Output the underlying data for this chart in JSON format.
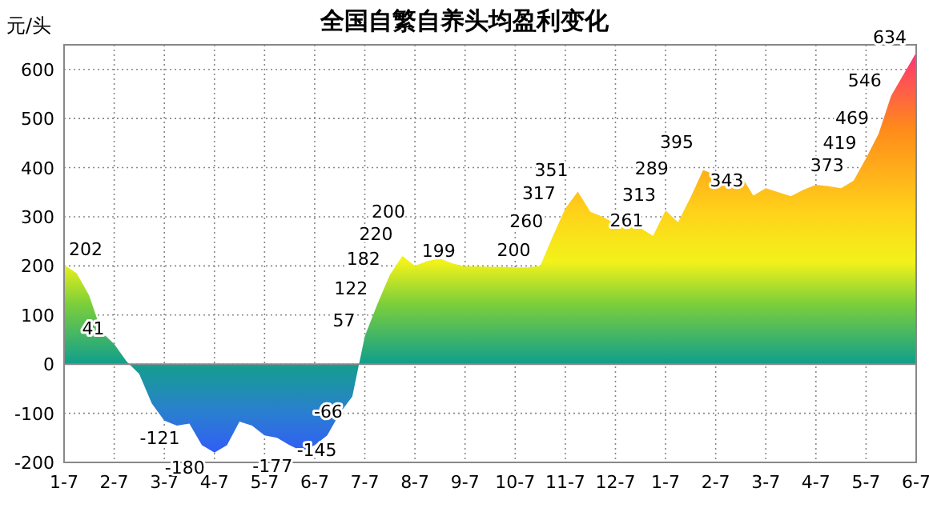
{
  "chart_data": {
    "type": "area",
    "title": "全国自繁自养头均盈利变化",
    "ylabel": "元/头",
    "categories": [
      "1-7",
      null,
      null,
      null,
      "2-7",
      null,
      null,
      null,
      "3-7",
      null,
      null,
      null,
      "4-7",
      null,
      null,
      null,
      "5-7",
      null,
      null,
      null,
      "6-7",
      null,
      null,
      null,
      "7-7",
      null,
      null,
      null,
      "8-7",
      null,
      null,
      null,
      "9-7",
      null,
      null,
      null,
      "10-7",
      null,
      null,
      null,
      "11-7",
      null,
      null,
      null,
      "12-7",
      null,
      null,
      null,
      "1-7",
      null,
      null,
      null,
      "2-7",
      null,
      null,
      null,
      "3-7",
      null,
      null,
      null,
      "4-7",
      null,
      null,
      null,
      "5-7",
      null,
      null,
      null,
      "6-7"
    ],
    "values": [
      202,
      185,
      140,
      65,
      41,
      5,
      -20,
      -80,
      -115,
      -125,
      -121,
      -165,
      -180,
      -165,
      -117,
      -125,
      -145,
      -150,
      -165,
      -177,
      -165,
      -145,
      -100,
      -66,
      57,
      122,
      182,
      220,
      200,
      210,
      215,
      205,
      199,
      199,
      198,
      198,
      197,
      197,
      200,
      260,
      317,
      351,
      310,
      300,
      285,
      280,
      277,
      261,
      313,
      289,
      340,
      395,
      385,
      371,
      385,
      343,
      358,
      350,
      342,
      355,
      365,
      362,
      358,
      373,
      419,
      469,
      546,
      590,
      634
    ],
    "value_labels": [
      "202",
      null,
      null,
      null,
      "41",
      null,
      null,
      null,
      null,
      null,
      "-121",
      null,
      "-180",
      null,
      null,
      null,
      null,
      null,
      null,
      "-177",
      null,
      "-145",
      null,
      "-66",
      "57",
      "122",
      "182",
      "220",
      "200",
      null,
      null,
      null,
      "199",
      null,
      null,
      null,
      null,
      null,
      "200",
      "260",
      "317",
      "351",
      null,
      null,
      null,
      null,
      null,
      "261",
      "313",
      "289",
      null,
      "395",
      null,
      null,
      null,
      "343",
      null,
      null,
      null,
      null,
      null,
      null,
      null,
      "373",
      "419",
      "469",
      "546",
      null,
      "634"
    ],
    "ylim": [
      -200,
      650
    ],
    "yticks": [
      -200,
      -100,
      0,
      100,
      200,
      300,
      400,
      500,
      600
    ],
    "grid": true
  }
}
